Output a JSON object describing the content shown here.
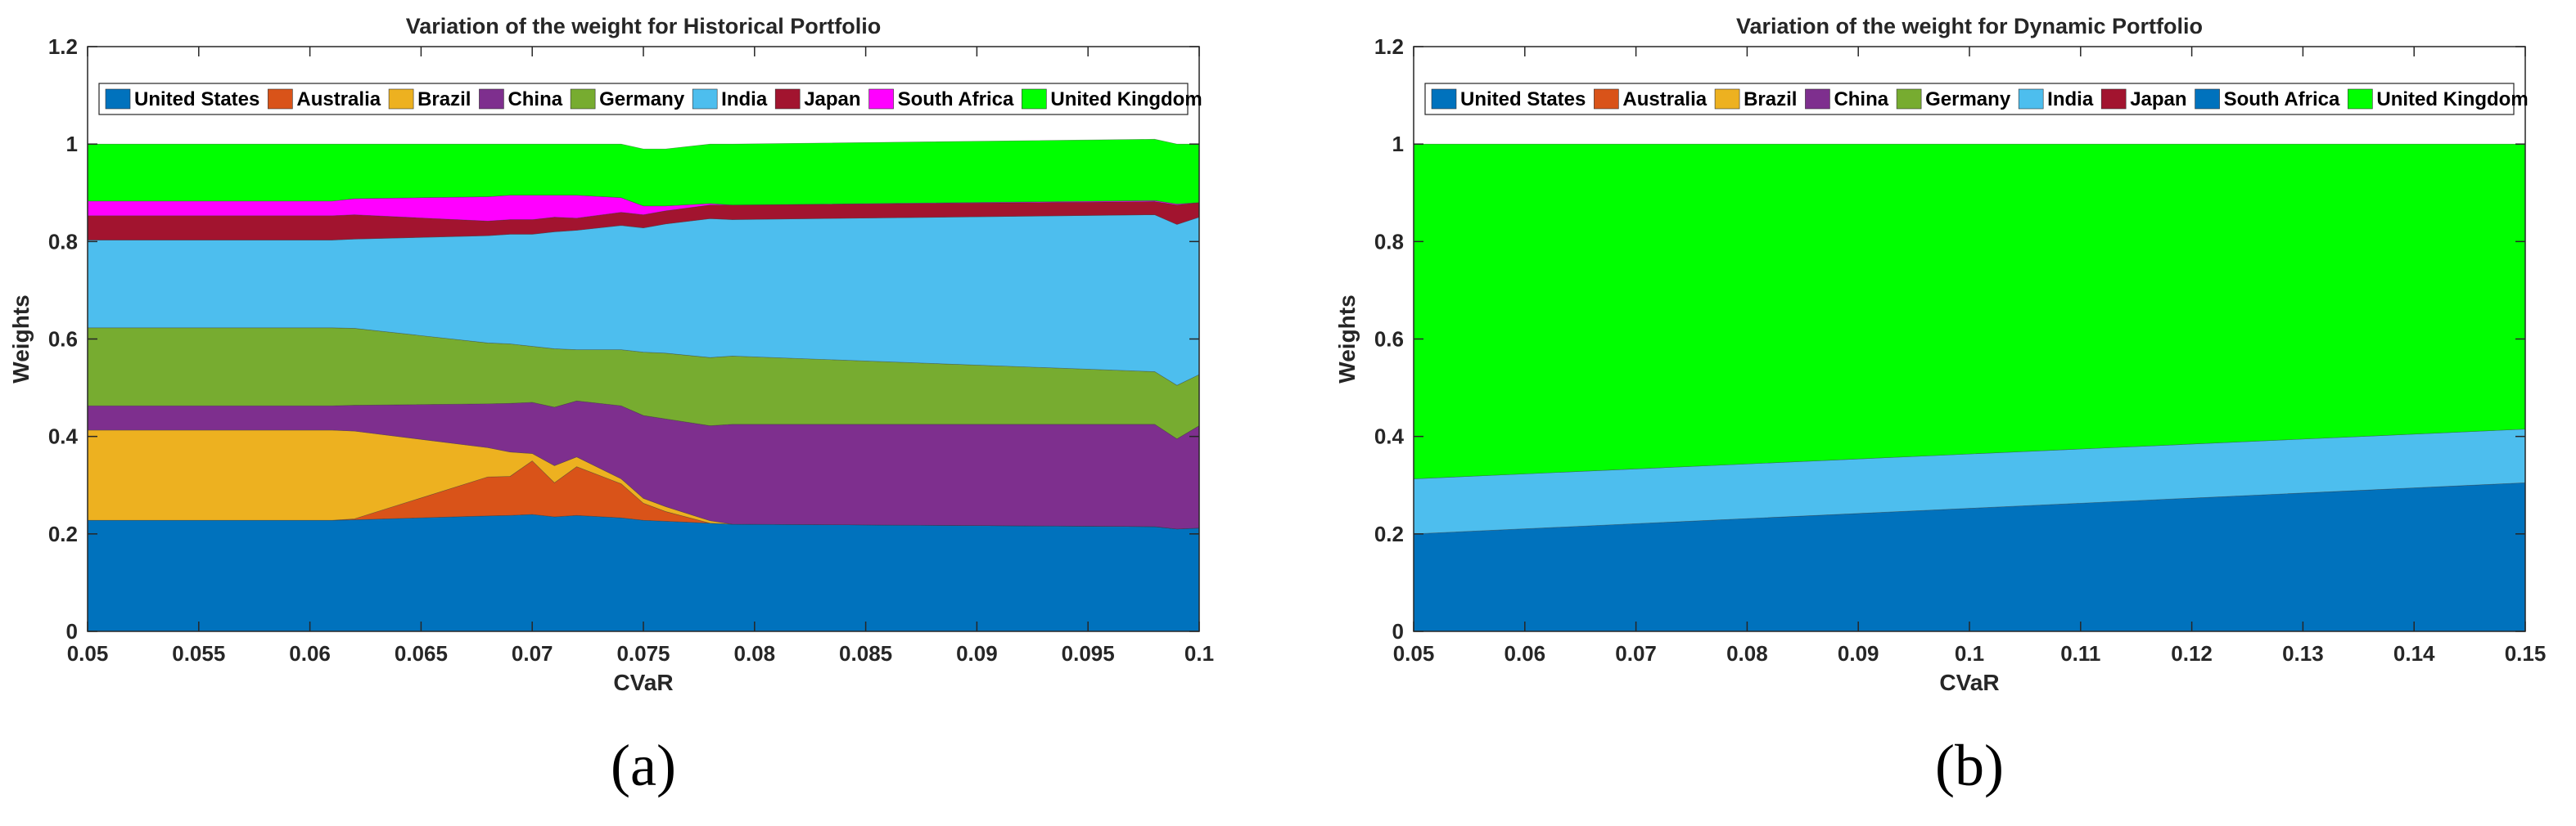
{
  "chart_data": [
    {
      "type": "area",
      "title": "Variation of the weight for Historical Portfolio",
      "xlabel": "CVaR",
      "ylabel": "Weights",
      "panel_label": "(a)",
      "xlim": [
        0.05,
        0.1
      ],
      "ylim": [
        0,
        1.2
      ],
      "xticks": [
        "0.05",
        "0.055",
        "0.06",
        "0.065",
        "0.07",
        "0.075",
        "0.08",
        "0.085",
        "0.09",
        "0.095",
        "0.1"
      ],
      "yticks": [
        "0",
        "0.2",
        "0.4",
        "0.6",
        "0.8",
        "1",
        "1.2"
      ],
      "legend": "top",
      "x": [
        0.05,
        0.061,
        0.062,
        0.068,
        0.069,
        0.07,
        0.071,
        0.072,
        0.074,
        0.075,
        0.076,
        0.078,
        0.079,
        0.098,
        0.099,
        0.1
      ],
      "series": [
        {
          "name": "United States",
          "color": "#0072BD",
          "values": [
            0.228,
            0.228,
            0.229,
            0.237,
            0.238,
            0.24,
            0.235,
            0.238,
            0.233,
            0.228,
            0.226,
            0.222,
            0.22,
            0.215,
            0.21,
            0.212
          ]
        },
        {
          "name": "Australia",
          "color": "#D95319",
          "values": [
            0,
            0,
            0.002,
            0.08,
            0.08,
            0.11,
            0.07,
            0.1,
            0.07,
            0.035,
            0.02,
            0,
            0,
            0,
            0,
            0
          ]
        },
        {
          "name": "Brazil",
          "color": "#EDB120",
          "values": [
            0.185,
            0.185,
            0.18,
            0.06,
            0.05,
            0.015,
            0.035,
            0.02,
            0.01,
            0.01,
            0.01,
            0.005,
            0,
            0,
            0,
            0
          ]
        },
        {
          "name": "China",
          "color": "#7E2F8E",
          "values": [
            0.05,
            0.05,
            0.053,
            0.09,
            0.1,
            0.105,
            0.12,
            0.115,
            0.15,
            0.17,
            0.18,
            0.195,
            0.205,
            0.21,
            0.185,
            0.21
          ]
        },
        {
          "name": "Germany",
          "color": "#77AC30",
          "values": [
            0.16,
            0.16,
            0.158,
            0.125,
            0.122,
            0.115,
            0.12,
            0.105,
            0.115,
            0.13,
            0.135,
            0.14,
            0.14,
            0.108,
            0.11,
            0.105
          ]
        },
        {
          "name": "India",
          "color": "#4DBEEE",
          "values": [
            0.18,
            0.18,
            0.183,
            0.22,
            0.225,
            0.23,
            0.24,
            0.245,
            0.255,
            0.255,
            0.265,
            0.285,
            0.28,
            0.322,
            0.33,
            0.323
          ]
        },
        {
          "name": "Japan",
          "color": "#A2142F",
          "values": [
            0.05,
            0.05,
            0.05,
            0.03,
            0.03,
            0.03,
            0.03,
            0.025,
            0.027,
            0.027,
            0.027,
            0.028,
            0.03,
            0.027,
            0.04,
            0.03
          ]
        },
        {
          "name": "South Africa",
          "color": "#FF00FF",
          "values": [
            0.03,
            0.03,
            0.033,
            0.05,
            0.05,
            0.05,
            0.045,
            0.047,
            0.03,
            0.018,
            0.01,
            0.003,
            0,
            0.002,
            0.002,
            0
          ]
        },
        {
          "name": "United Kingdom",
          "color": "#00FF00",
          "values": [
            0.117,
            0.117,
            0.112,
            0.108,
            0.105,
            0.105,
            0.105,
            0.105,
            0.11,
            0.117,
            0.117,
            0.122,
            0.125,
            0.126,
            0.123,
            0.12
          ]
        }
      ]
    },
    {
      "type": "area",
      "title": "Variation of the weight for Dynamic Portfolio",
      "xlabel": "CVaR",
      "ylabel": "Weights",
      "panel_label": "(b)",
      "xlim": [
        0.05,
        0.15
      ],
      "ylim": [
        0,
        1.2
      ],
      "xticks": [
        "0.05",
        "0.06",
        "0.07",
        "0.08",
        "0.09",
        "0.1",
        "0.11",
        "0.12",
        "0.13",
        "0.14",
        "0.15"
      ],
      "yticks": [
        "0",
        "0.2",
        "0.4",
        "0.6",
        "0.8",
        "1",
        "1.2"
      ],
      "legend": "top",
      "x": [
        0.05,
        0.15
      ],
      "series": [
        {
          "name": "United States",
          "color": "#0072BD",
          "values": [
            0.2,
            0.305
          ]
        },
        {
          "name": "Australia",
          "color": "#D95319",
          "values": [
            0,
            0
          ]
        },
        {
          "name": "Brazil",
          "color": "#EDB120",
          "values": [
            0,
            0
          ]
        },
        {
          "name": "China",
          "color": "#7E2F8E",
          "values": [
            0,
            0
          ]
        },
        {
          "name": "Germany",
          "color": "#77AC30",
          "values": [
            0,
            0
          ]
        },
        {
          "name": "India",
          "color": "#4DBEEE",
          "values": [
            0.113,
            0.11
          ]
        },
        {
          "name": "Japan",
          "color": "#A2142F",
          "values": [
            0,
            0
          ]
        },
        {
          "name": "South Africa",
          "color": "#0072BD",
          "values": [
            0,
            0
          ]
        },
        {
          "name": "United Kingdom",
          "color": "#00FF00",
          "values": [
            0.687,
            0.585
          ]
        }
      ]
    }
  ]
}
